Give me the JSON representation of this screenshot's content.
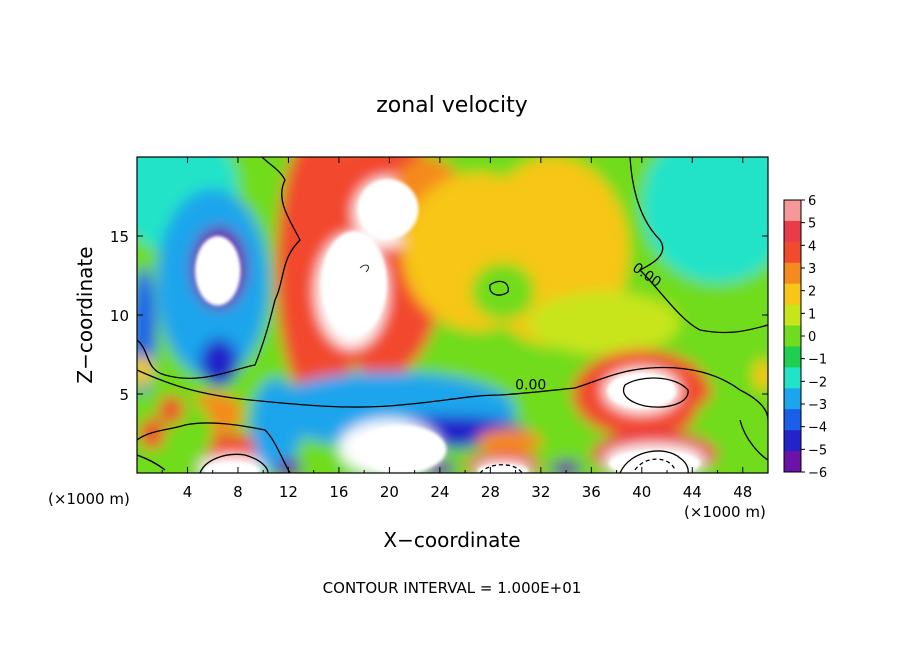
{
  "chart_data": {
    "type": "heatmap",
    "title": "zonal velocity",
    "xlabel": "X−coordinate",
    "ylabel": "Z−coordinate",
    "x_unit_left": "(×1000 m)",
    "x_unit_right": "(×1000 m)",
    "footer": "CONTOUR INTERVAL = 1.000E+01",
    "xlim": [
      0,
      50
    ],
    "ylim": [
      0,
      20
    ],
    "x_ticks": [
      4,
      8,
      12,
      16,
      20,
      24,
      28,
      32,
      36,
      40,
      44,
      48
    ],
    "y_ticks": [
      5,
      10,
      15
    ],
    "contour_labels": [
      {
        "text": "0.00",
        "x": 40.2,
        "y": 12.3
      },
      {
        "text": "0.00",
        "x": 31.2,
        "y": 5.3
      }
    ],
    "colorbar": {
      "ticks": [
        "6",
        "5",
        "4",
        "3",
        "2",
        "1",
        "0",
        "−1",
        "−2",
        "−3",
        "−4",
        "−5",
        "−6"
      ],
      "colors": [
        "#f4989a",
        "#ea3b4a",
        "#f24a2e",
        "#f58a1e",
        "#f7c619",
        "#c8e51c",
        "#6fdc1f",
        "#1fcf4f",
        "#22e3c8",
        "#1aa5ec",
        "#1a5fe8",
        "#2323c9",
        "#6d12a8"
      ]
    },
    "regions": [
      {
        "value": 0.0,
        "x": 25,
        "y": 10,
        "rx": 40,
        "ry": 18
      },
      {
        "value": -2.2,
        "x": 3,
        "y": 18,
        "rx": 5,
        "ry": 4
      },
      {
        "value": -2.0,
        "x": 46,
        "y": 17,
        "rx": 6,
        "ry": 5
      },
      {
        "value": -3.2,
        "x": 6,
        "y": 12,
        "rx": 4.5,
        "ry": 6
      },
      {
        "value": -6.5,
        "x": 6.5,
        "y": 13.0,
        "rx": 2.2,
        "ry": 2.6
      },
      {
        "value": -4.5,
        "x": 6.5,
        "y": 7,
        "rx": 1.5,
        "ry": 1.5
      },
      {
        "value": 4.2,
        "x": 14.5,
        "y": 13,
        "rx": 3.5,
        "ry": 9
      },
      {
        "value": 4.5,
        "x": 19.5,
        "y": 14,
        "rx": 5,
        "ry": 8
      },
      {
        "value": 7.0,
        "x": 20,
        "y": 16.5,
        "rx": 2.8,
        "ry": 2.2
      },
      {
        "value": 7.0,
        "x": 17,
        "y": 11.5,
        "rx": 2.8,
        "ry": 3.6
      },
      {
        "value": 3.5,
        "x": 23,
        "y": 17,
        "rx": 3,
        "ry": 3
      },
      {
        "value": 2.4,
        "x": 27,
        "y": 14,
        "rx": 6,
        "ry": 5
      },
      {
        "value": 1.8,
        "x": 33,
        "y": 14,
        "rx": 6,
        "ry": 6
      },
      {
        "value": 0.3,
        "x": 29,
        "y": 11.5,
        "rx": 2.5,
        "ry": 1.8
      },
      {
        "value": 1.2,
        "x": 37,
        "y": 9.5,
        "rx": 6,
        "ry": 2
      },
      {
        "value": 3.6,
        "x": 40,
        "y": 5.0,
        "rx": 5.5,
        "ry": 2.8
      },
      {
        "value": 7.0,
        "x": 40,
        "y": 5.2,
        "rx": 3.0,
        "ry": 1.4
      },
      {
        "value": 0.2,
        "x": 47,
        "y": 3,
        "rx": 3,
        "ry": 2
      },
      {
        "value": -2.5,
        "x": 20,
        "y": 4,
        "rx": 10,
        "ry": 2.4
      },
      {
        "value": -4.5,
        "x": 25,
        "y": 2.6,
        "rx": 6,
        "ry": 1.0
      },
      {
        "value": 7.0,
        "x": 20,
        "y": 1.6,
        "rx": 4,
        "ry": 1.8
      },
      {
        "value": 3.5,
        "x": 6,
        "y": 3.8,
        "rx": 2.4,
        "ry": 1.3
      },
      {
        "value": 4.2,
        "x": 7.5,
        "y": 1.2,
        "rx": 4,
        "ry": 1.3
      },
      {
        "value": 7.0,
        "x": 7.5,
        "y": 0.3,
        "rx": 2.6,
        "ry": 0.8
      },
      {
        "value": 3.5,
        "x": 29.5,
        "y": 2.0,
        "rx": 2.6,
        "ry": 0.8
      },
      {
        "value": 4.8,
        "x": 29,
        "y": 0.5,
        "rx": 3,
        "ry": 0.8
      },
      {
        "value": 7.0,
        "x": 29,
        "y": 0.2,
        "rx": 2.2,
        "ry": 0.5
      },
      {
        "value": 4.8,
        "x": 41,
        "y": 1.2,
        "rx": 5,
        "ry": 1.4
      },
      {
        "value": 7.0,
        "x": 41,
        "y": 0.8,
        "rx": 4,
        "ry": 1.0
      },
      {
        "value": 0.1,
        "x": 3,
        "y": 2.5,
        "rx": 3,
        "ry": 2.5
      },
      {
        "value": -2.5,
        "x": 11,
        "y": 3,
        "rx": 2,
        "ry": 3
      },
      {
        "value": -6.2,
        "x": 12,
        "y": 0.3,
        "rx": 1,
        "ry": 0.6
      },
      {
        "value": -6.2,
        "x": 24,
        "y": 0.3,
        "rx": 1.2,
        "ry": 0.5
      },
      {
        "value": -6.2,
        "x": 34,
        "y": 0.3,
        "rx": 1.2,
        "ry": 0.5
      },
      {
        "value": -4.0,
        "x": 0.5,
        "y": 9,
        "rx": 1,
        "ry": 4
      },
      {
        "value": 2.5,
        "x": 0.4,
        "y": 6.5,
        "rx": 0.8,
        "ry": 1.0
      },
      {
        "value": 2.5,
        "x": 49.6,
        "y": 6.2,
        "rx": 0.8,
        "ry": 1.0
      },
      {
        "value": 4.5,
        "x": 2.7,
        "y": 4.0,
        "rx": 1.0,
        "ry": 0.9
      },
      {
        "value": 4.5,
        "x": 1.2,
        "y": 2.5,
        "rx": 1.0,
        "ry": 1.0
      }
    ],
    "white_regions": [
      {
        "x": 19.9,
        "y": 16.7,
        "rx": 2.4,
        "ry": 1.9
      },
      {
        "x": 17.2,
        "y": 12.0,
        "rx": 2.6,
        "ry": 3.3
      },
      {
        "x": 6.4,
        "y": 12.8,
        "rx": 1.8,
        "ry": 2.2
      },
      {
        "x": 40.0,
        "y": 5.2,
        "rx": 2.7,
        "ry": 1.1
      },
      {
        "x": 21.0,
        "y": 1.5,
        "rx": 3.5,
        "ry": 1.5
      },
      {
        "x": 41.0,
        "y": 0.6,
        "rx": 3.6,
        "ry": 0.8
      },
      {
        "x": 29.0,
        "y": 0.15,
        "rx": 2.0,
        "ry": 0.4
      },
      {
        "x": 7.5,
        "y": 0.15,
        "rx": 2.2,
        "ry": 0.5
      }
    ]
  }
}
